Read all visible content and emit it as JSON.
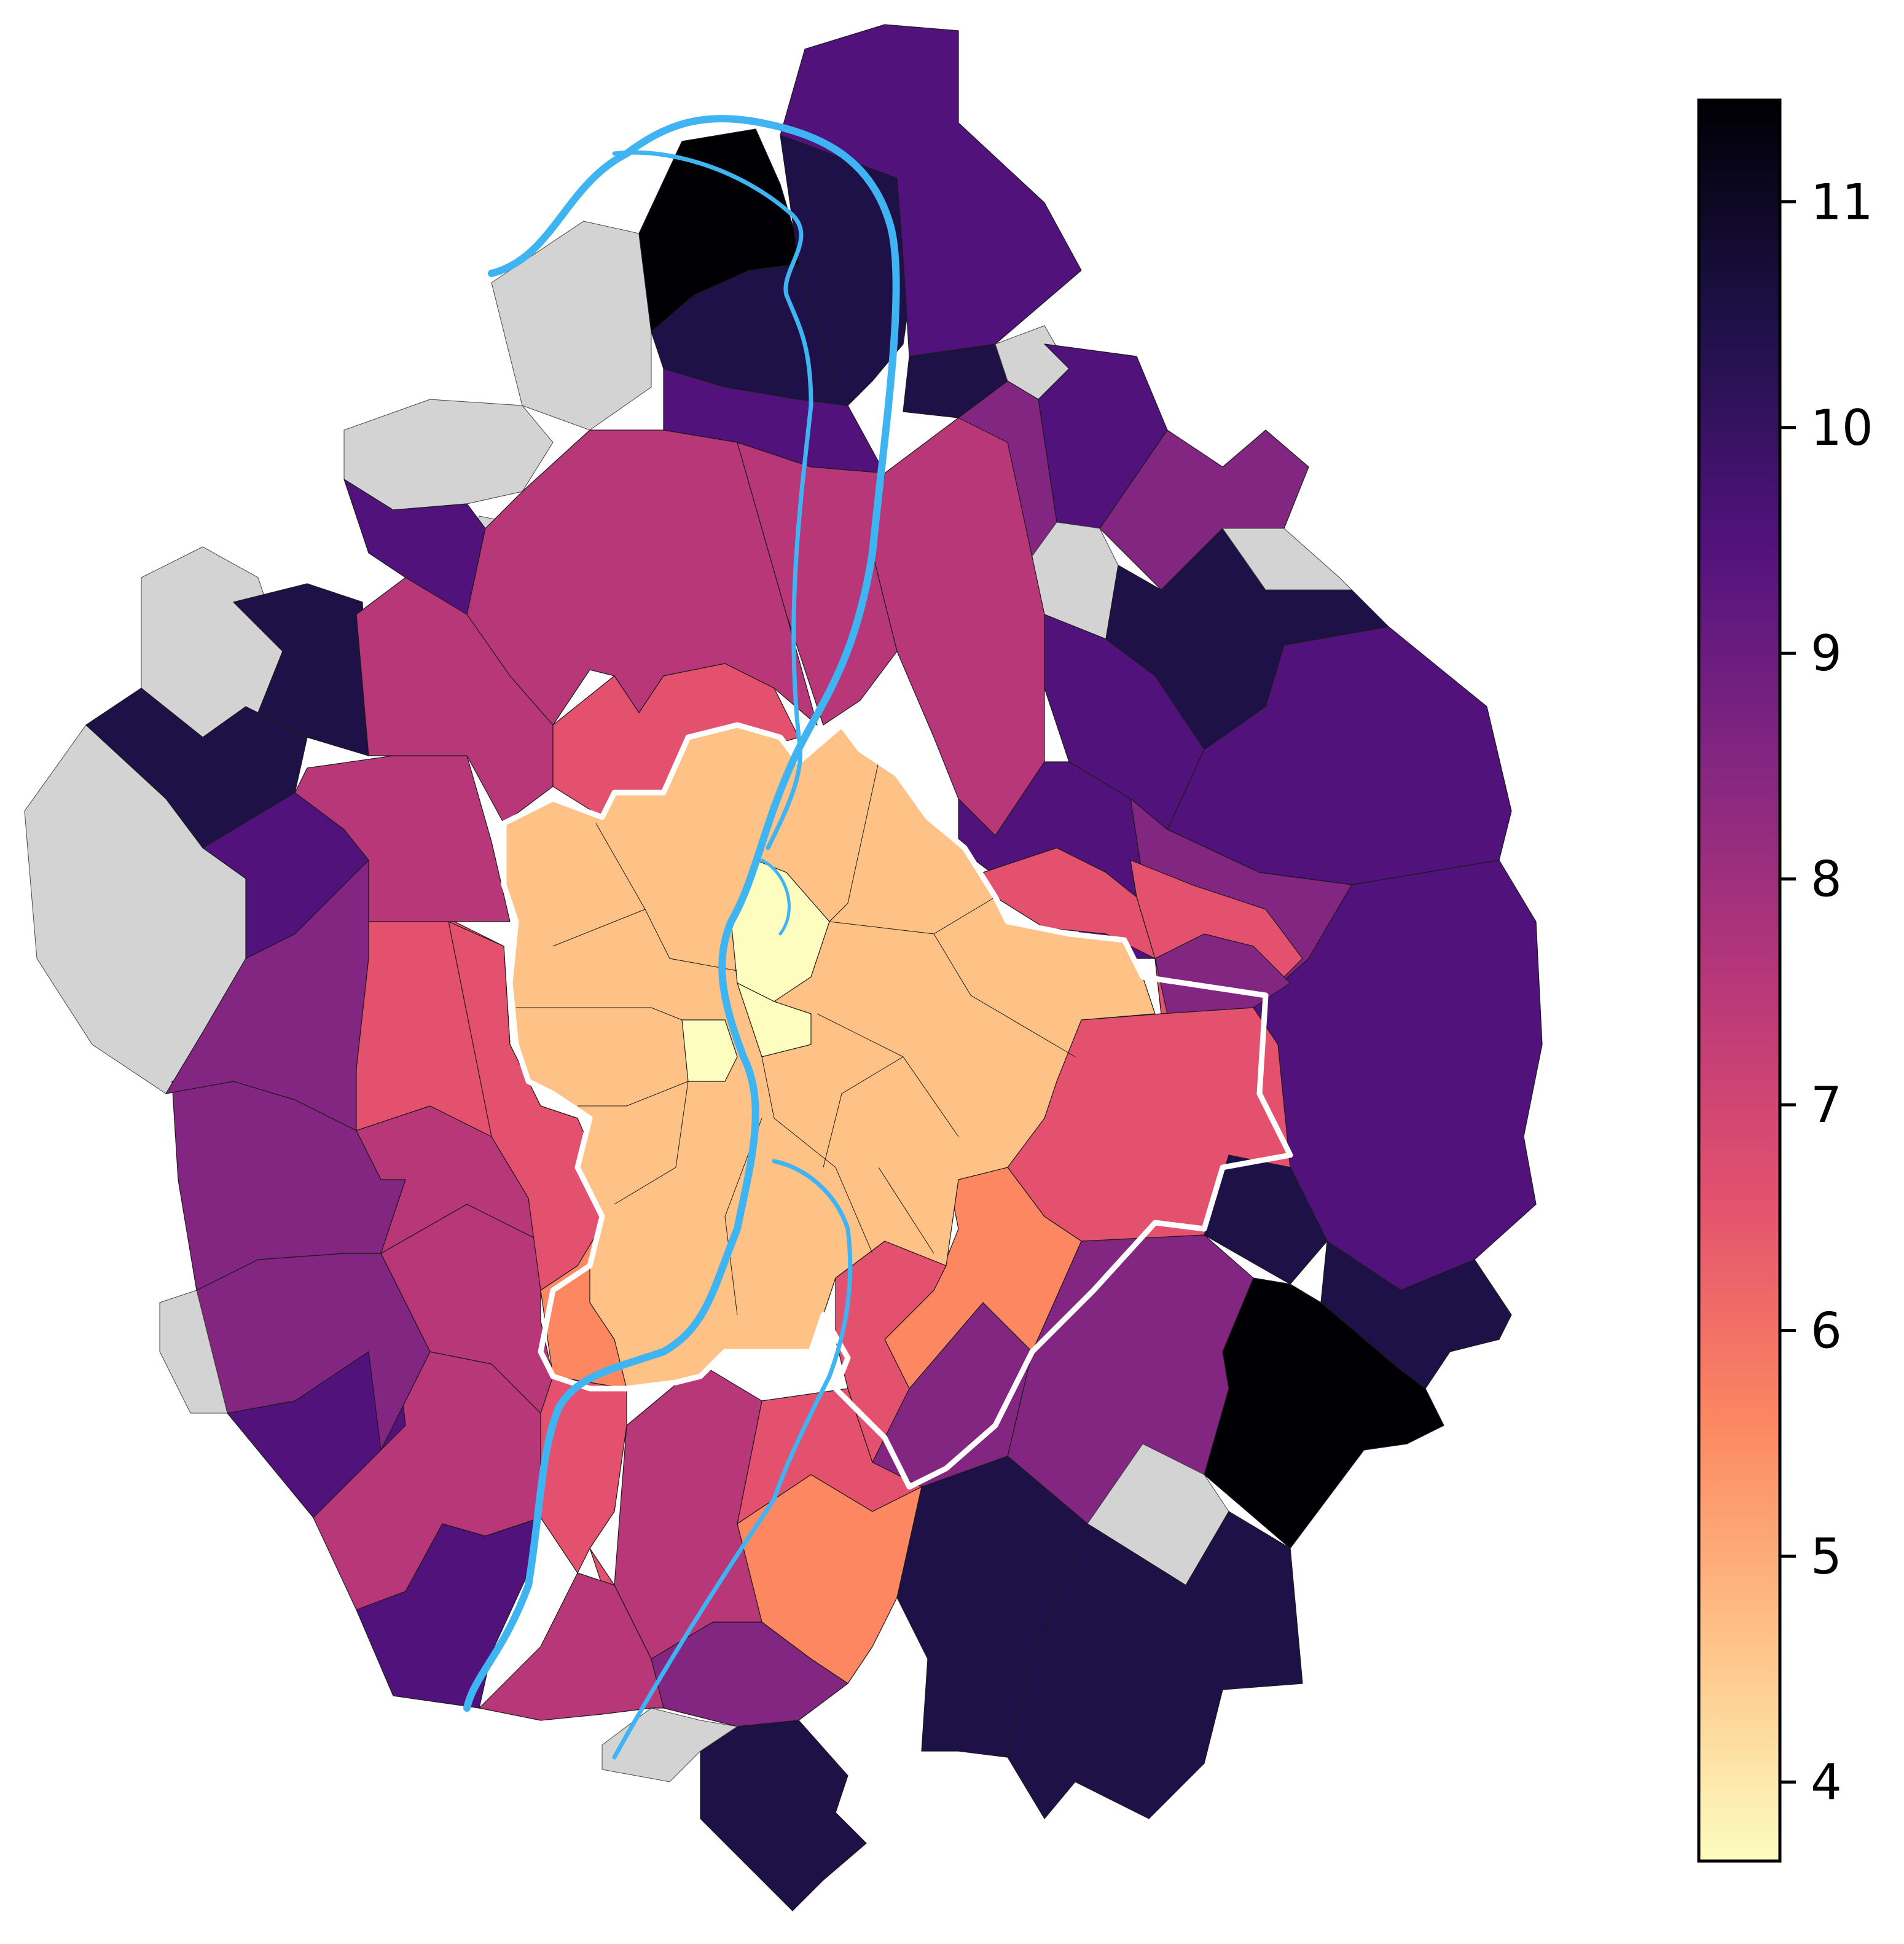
{
  "map": {
    "nodata_color": "#d3d3d3",
    "river_color": "#3fb4f2",
    "city_boundary_color": "#ffffff",
    "colormap": "magma_r"
  },
  "colorbar": {
    "min": 3.65,
    "max": 11.45,
    "ticks": [
      {
        "value": 4,
        "label": "4"
      },
      {
        "value": 5,
        "label": "5"
      },
      {
        "value": 6,
        "label": "6"
      },
      {
        "value": 7,
        "label": "7"
      },
      {
        "value": 8,
        "label": "8"
      },
      {
        "value": 9,
        "label": "9"
      },
      {
        "value": 10,
        "label": "10"
      },
      {
        "value": 11,
        "label": "11"
      }
    ],
    "stops": [
      "#fcfdbf",
      "#fec287",
      "#fc8761",
      "#e3516e",
      "#b73779",
      "#832681",
      "#51127c",
      "#1d1147",
      "#000004"
    ]
  }
}
